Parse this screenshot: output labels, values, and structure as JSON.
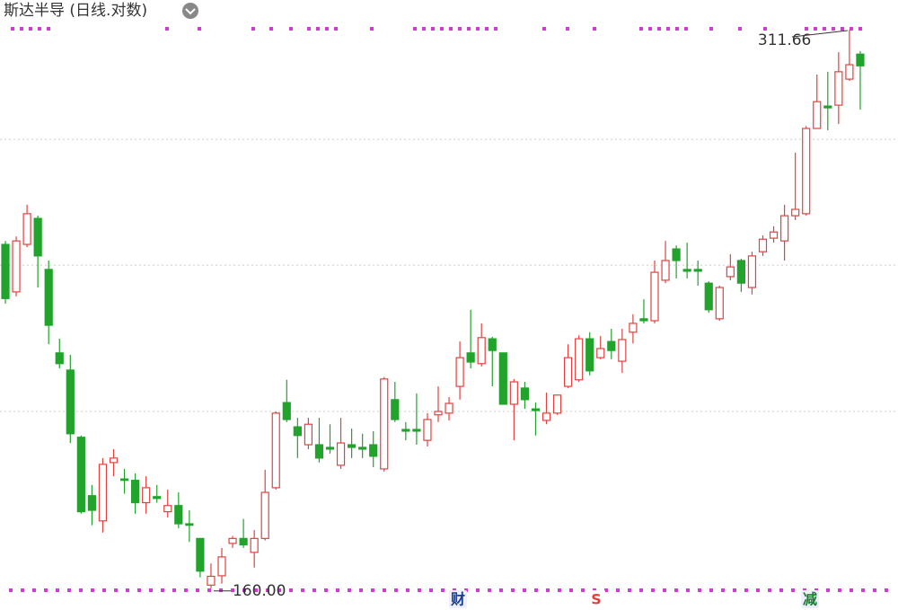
{
  "chart_data": {
    "type": "candlestick",
    "title": "斯达半导 (日线.对数)",
    "log_scale": true,
    "ylim": [
      155.9,
      322.9
    ],
    "gridlines": [
      273.4,
      235.3,
      197.6
    ],
    "up_color": "#e2413f",
    "down_color": "#21a32c",
    "high_label": "311.66",
    "low_label": "160.00",
    "events": [
      "财",
      "S",
      "减"
    ],
    "open": [
      241.2,
      227.9,
      241.2,
      248.8,
      234.1,
      211.9,
      207.6,
      191.6,
      178.7,
      173.4,
      185.9,
      182.3,
      182.0,
      177.2,
      178.5,
      175.3,
      176.6,
      172.8,
      169.8,
      160.6,
      162.4,
      168.8,
      169.8,
      167.0,
      169.8,
      180.4,
      199.7,
      194.0,
      189.9,
      189.9,
      189.3,
      185.3,
      189.9,
      189.3,
      189.9,
      184.5,
      200.4,
      193.4,
      193.4,
      190.9,
      196.8,
      197.2,
      203.6,
      211.9,
      209.2,
      215.5,
      211.9,
      199.3,
      203.2,
      198.2,
      195.5,
      197.2,
      203.6,
      205.2,
      215.5,
      210.7,
      214.8,
      209.8,
      217.2,
      220.7,
      220.2,
      231.1,
      239.9,
      234.1,
      234.1,
      230.3,
      220.7,
      232.1,
      236.6,
      229.1,
      239.1,
      243.0,
      242.2,
      249.6,
      250.2,
      277.0,
      284.5,
      284.8,
      293.8,
      302.7
    ],
    "high": [
      242.2,
      243.5,
      252.9,
      249.6,
      236.6,
      215.5,
      211.4,
      192.0,
      181.0,
      186.9,
      188.9,
      184.5,
      183.5,
      182.9,
      181.0,
      180.0,
      179.4,
      175.6,
      169.8,
      164.8,
      167.9,
      170.3,
      173.8,
      171.5,
      184.3,
      197.6,
      205.2,
      196.1,
      196.1,
      196.1,
      194.6,
      196.1,
      193.6,
      192.4,
      193.0,
      205.9,
      204.7,
      195.1,
      201.9,
      197.2,
      203.6,
      201.0,
      214.8,
      223.1,
      219.5,
      216.0,
      211.9,
      205.4,
      204.7,
      199.7,
      202.1,
      201.5,
      214.1,
      216.4,
      217.2,
      216.2,
      218.1,
      218.1,
      221.9,
      225.9,
      236.6,
      242.2,
      240.9,
      241.7,
      236.6,
      230.8,
      229.6,
      238.4,
      237.1,
      239.1,
      243.8,
      246.5,
      252.9,
      269.1,
      277.8,
      295.4,
      296.4,
      303.4,
      311.66,
      303.8
    ],
    "low": [
      224.7,
      226.7,
      240.4,
      229.1,
      214.1,
      208.0,
      190.3,
      174.9,
      172.5,
      171.0,
      182.9,
      179.1,
      174.9,
      174.9,
      177.2,
      174.1,
      171.9,
      169.1,
      162.1,
      160.0,
      160.9,
      167.9,
      167.9,
      164.0,
      169.4,
      180.0,
      195.1,
      186.9,
      188.9,
      185.9,
      187.9,
      184.5,
      186.9,
      186.9,
      184.9,
      183.9,
      195.1,
      190.9,
      189.9,
      189.5,
      195.1,
      195.5,
      200.4,
      208.0,
      208.5,
      203.6,
      199.3,
      190.9,
      198.2,
      192.0,
      194.6,
      196.8,
      203.2,
      204.7,
      206.3,
      210.3,
      210.3,
      206.9,
      214.3,
      219.5,
      219.5,
      230.3,
      231.6,
      231.6,
      229.6,
      222.3,
      220.2,
      231.1,
      227.9,
      227.2,
      237.9,
      241.7,
      236.6,
      248.3,
      249.6,
      277.0,
      276.4,
      278.5,
      293.2,
      283.3
    ],
    "close": [
      226.1,
      242.2,
      250.2,
      237.9,
      219.0,
      209.2,
      192.4,
      175.3,
      175.6,
      185.5,
      186.9,
      182.0,
      177.2,
      180.4,
      178.1,
      176.6,
      172.8,
      172.5,
      163.3,
      162.3,
      166.1,
      169.8,
      168.5,
      169.8,
      179.4,
      197.2,
      195.7,
      192.0,
      194.6,
      186.9,
      188.9,
      190.3,
      189.3,
      188.9,
      187.3,
      205.4,
      195.7,
      193.0,
      193.0,
      195.7,
      197.6,
      199.5,
      210.7,
      209.6,
      215.8,
      212.5,
      199.3,
      204.7,
      200.4,
      197.8,
      197.2,
      201.5,
      210.7,
      215.5,
      207.4,
      213.0,
      212.5,
      215.3,
      219.5,
      220.2,
      233.3,
      236.6,
      236.6,
      233.6,
      233.6,
      223.1,
      229.1,
      234.8,
      230.3,
      237.9,
      242.7,
      244.8,
      249.6,
      251.5,
      277.0,
      286.0,
      283.9,
      296.4,
      298.9,
      298.5
    ]
  }
}
